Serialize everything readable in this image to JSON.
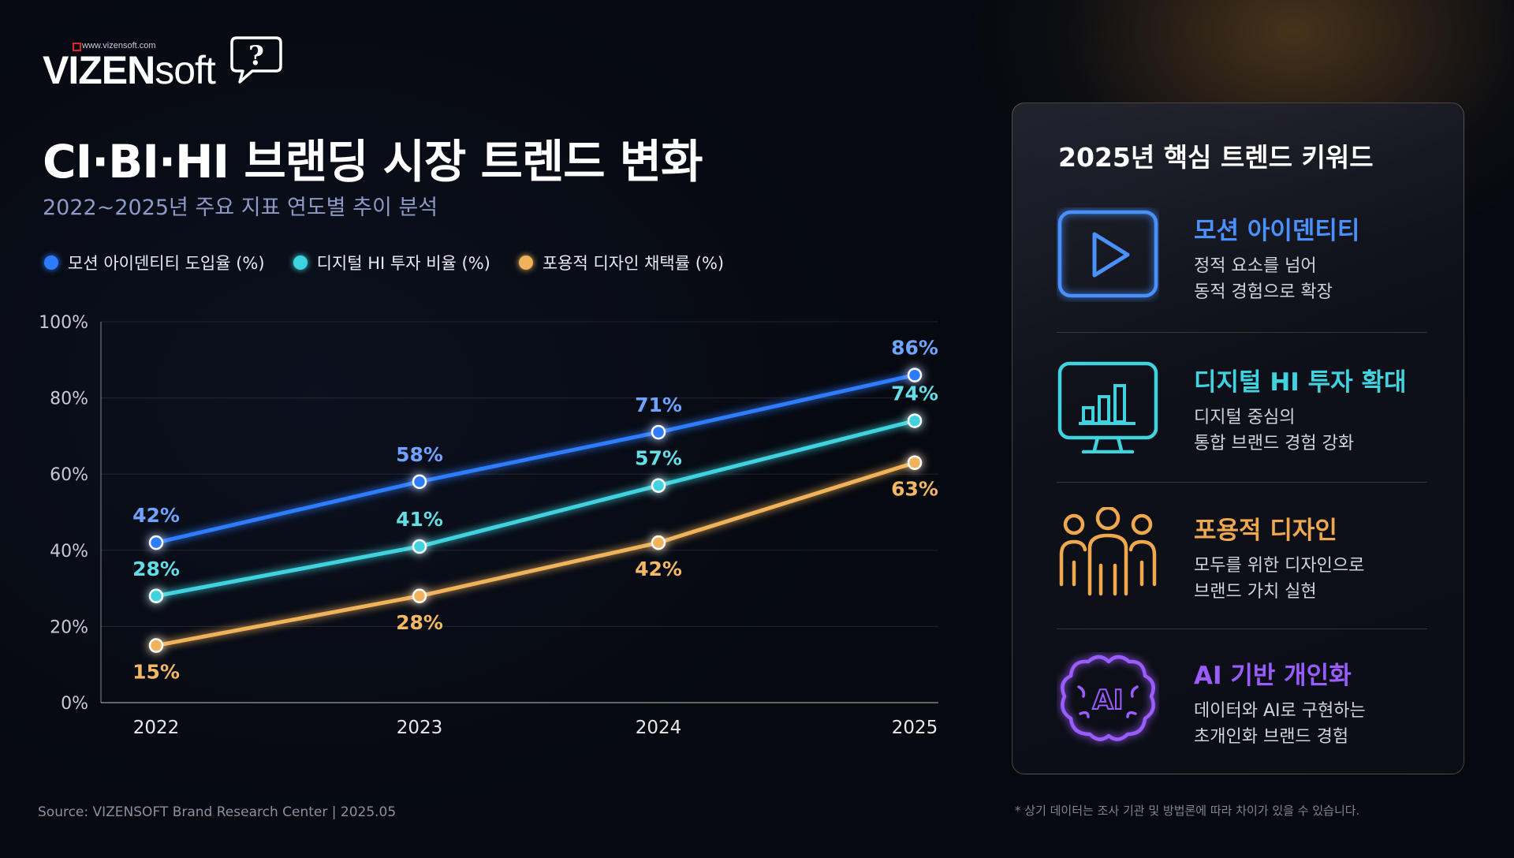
{
  "logo": {
    "url": "www.vizensoft.com",
    "word_bold": "VIZEN",
    "word_light": "soft",
    "bubble_glyph": "?"
  },
  "header": {
    "title": "CI·BI·HI 브랜딩 시장 트렌드 변화",
    "subtitle": "2022~2025년 주요 지표 연도별 추이 분석"
  },
  "chart_data": {
    "type": "line",
    "x": [
      "2022",
      "2023",
      "2024",
      "2025"
    ],
    "ylim": [
      0,
      100
    ],
    "yticks": [
      0,
      20,
      40,
      60,
      80,
      100
    ],
    "ytick_labels": [
      "0%",
      "20%",
      "40%",
      "60%",
      "80%",
      "100%"
    ],
    "grid": true,
    "legend_position": "top-left",
    "series": [
      {
        "name": "모션 아이덴티티 도입율 (%)",
        "values": [
          42,
          58,
          71,
          86
        ],
        "labels": [
          "42%",
          "58%",
          "71%",
          "86%"
        ],
        "color": "#2f7bff",
        "label_color": "#6ea4ff"
      },
      {
        "name": "디지털 HI 투자 비율 (%)",
        "values": [
          28,
          41,
          57,
          74
        ],
        "labels": [
          "28%",
          "41%",
          "57%",
          "74%"
        ],
        "color": "#3fd3df",
        "label_color": "#63dde6"
      },
      {
        "name": "포용적 디자인 채택률 (%)",
        "values": [
          15,
          28,
          42,
          63
        ],
        "labels": [
          "15%",
          "28%",
          "42%",
          "63%"
        ],
        "color": "#f0b25a",
        "label_color": "#f2b866"
      }
    ]
  },
  "panel": {
    "title": "2025년 핵심 트렌드 키워드",
    "keywords": [
      {
        "title": "모션 아이덴티티",
        "desc1": "정적 요소를 넘어",
        "desc2": "동적 경험으로 확장",
        "icon": "play-screen-icon",
        "color": "#4a90ff"
      },
      {
        "title": "디지털 HI 투자 확대",
        "desc1": "디지털 중심의",
        "desc2": "통합 브랜드 경험 강화",
        "icon": "monitor-chart-icon",
        "color": "#3fd3df"
      },
      {
        "title": "포용적 디자인",
        "desc1": "모두를 위한 디자인으로",
        "desc2": "브랜드 가치 실현",
        "icon": "people-group-icon",
        "color": "#f0a84e"
      },
      {
        "title": "AI 기반 개인화",
        "desc1": "데이터와 AI로 구현하는",
        "desc2": "초개인화 브랜드 경험",
        "icon": "ai-brain-icon",
        "color": "#9a5cff",
        "icon_text": "AI"
      }
    ]
  },
  "footer": {
    "source": "Source: VIZENSOFT Brand Research Center  |  2025.05",
    "note": "* 상기 데이터는 조사 기관 및 방법론에 따라 차이가 있을 수 있습니다."
  }
}
